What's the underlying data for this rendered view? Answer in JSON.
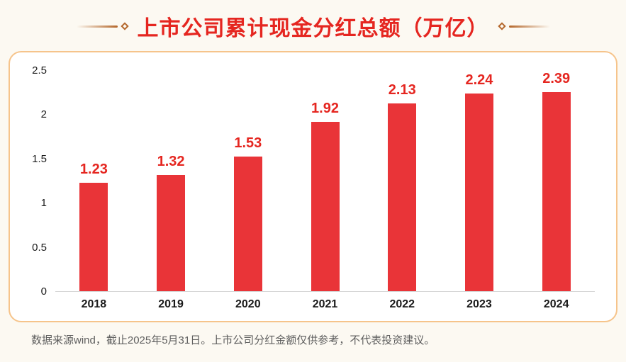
{
  "header": {
    "title": "上市公司累计现金分红总额（万亿）"
  },
  "footer": {
    "text": "数据来源wind，截止2025年5月31日。上市公司分红金额仅供参考，不代表投资建议。"
  },
  "colors": {
    "title_red": "#e52620",
    "bar_red": "#e93438",
    "value_label_red": "#e52620",
    "card_border": "#f6c48b",
    "decoration_brown": "#b4672b",
    "footer_gray": "#5f5f5f",
    "page_background": "#fcf9f2",
    "card_background": "#ffffff",
    "axis_line": "#d6d6d6",
    "axis_text": "#1a1a1a"
  },
  "chart_data": {
    "type": "bar",
    "title": "上市公司累计现金分红总额（万亿）",
    "categories": [
      "2018",
      "2019",
      "2020",
      "2021",
      "2022",
      "2023",
      "2024"
    ],
    "values": [
      1.23,
      1.32,
      1.53,
      1.92,
      2.13,
      2.24,
      2.39
    ],
    "value_labels": [
      "1.23",
      "1.32",
      "1.53",
      "1.92",
      "2.13",
      "2.24",
      "2.39"
    ],
    "xlabel": "",
    "ylabel": "",
    "ylim": [
      0,
      2.5
    ],
    "yticks": [
      0,
      0.5,
      1,
      1.5,
      2,
      2.5
    ],
    "ytick_labels": [
      "0",
      "0.5",
      "1",
      "1.5",
      "2",
      "2.5"
    ],
    "grid": false,
    "legend": false,
    "bar_color": "#e93438"
  }
}
